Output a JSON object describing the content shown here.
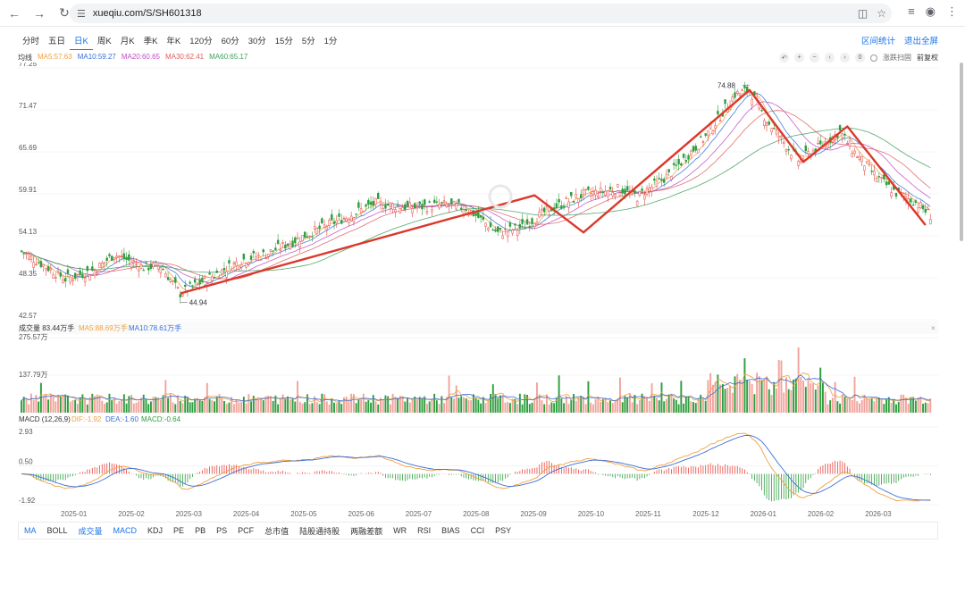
{
  "browser": {
    "url": "xueqiu.com/S/SH601318",
    "back_icon": "back-arrow-icon",
    "forward_icon": "forward-arrow-icon",
    "reload_icon": "reload-icon"
  },
  "period_tabs": [
    "分时",
    "五日",
    "日K",
    "周K",
    "月K",
    "季K",
    "年K",
    "120分",
    "60分",
    "30分",
    "15分",
    "5分",
    "1分"
  ],
  "active_period": "日K",
  "top_links": [
    "区间统计",
    "退出全屏"
  ],
  "ma_legend": {
    "label": "均线",
    "items": [
      {
        "text": "MA5:57.63",
        "color": "#f0a040"
      },
      {
        "text": "MA10:59.27",
        "color": "#3a6fd8"
      },
      {
        "text": "MA20:60.65",
        "color": "#c050c0"
      },
      {
        "text": "MA30:62.41",
        "color": "#e06060"
      },
      {
        "text": "MA60:65.17",
        "color": "#40a060"
      }
    ]
  },
  "chart_tools": {
    "zero": "0",
    "opt1": "涨跌扫固",
    "opt2": "前复权"
  },
  "colors": {
    "up": "#e8453c",
    "down": "#2e9e3e",
    "trend": "#d93a2b",
    "grid": "#eeeeee"
  },
  "chart_data": [
    {
      "type": "candlestick",
      "y_ticks": [
        "77.25",
        "71.47",
        "65.69",
        "59.91",
        "54.13",
        "48.35",
        "42.57"
      ],
      "ylim": [
        42.57,
        77.25
      ],
      "x_ticks": [
        "2025-01",
        "2025-02",
        "2025-03",
        "2025-04",
        "2025-05",
        "2025-06",
        "2025-07",
        "2025-08",
        "2025-09",
        "2025-10",
        "2025-11",
        "2025-12",
        "2026-01",
        "2026-02",
        "2026-03"
      ],
      "high_label": "74.88",
      "low_label": "44.94",
      "close_anchors": [
        [
          0,
          52.0
        ],
        [
          18,
          48.2
        ],
        [
          30,
          49.4
        ],
        [
          38,
          51.6
        ],
        [
          50,
          49.8
        ],
        [
          57,
          50.0
        ],
        [
          65,
          46.2
        ],
        [
          75,
          48.0
        ],
        [
          90,
          50.8
        ],
        [
          100,
          51.6
        ],
        [
          115,
          54.0
        ],
        [
          130,
          56.3
        ],
        [
          145,
          58.6
        ],
        [
          160,
          58.0
        ],
        [
          172,
          58.4
        ],
        [
          182,
          58.0
        ],
        [
          195,
          54.5
        ],
        [
          205,
          55.3
        ],
        [
          215,
          57.6
        ],
        [
          230,
          59.8
        ],
        [
          245,
          60.6
        ],
        [
          252,
          59.5
        ],
        [
          265,
          62.5
        ],
        [
          280,
          67.8
        ],
        [
          292,
          73.6
        ],
        [
          298,
          74.2
        ],
        [
          305,
          70.0
        ],
        [
          318,
          64.5
        ],
        [
          325,
          66.0
        ],
        [
          335,
          68.5
        ],
        [
          340,
          66.0
        ],
        [
          350,
          62.2
        ],
        [
          358,
          60.0
        ],
        [
          365,
          59.0
        ],
        [
          372,
          57.0
        ]
      ],
      "trend_line": [
        [
          65,
          46.2
        ],
        [
          210,
          59.7
        ],
        [
          230,
          54.6
        ],
        [
          298,
          74.2
        ],
        [
          320,
          64.3
        ],
        [
          338,
          69.2
        ],
        [
          370,
          55.6
        ]
      ]
    },
    {
      "type": "bar",
      "title": "成交量 83.44万手",
      "legend": [
        {
          "text": "MA5:88.69万手",
          "color": "#f0a040"
        },
        {
          "text": "MA10:78.61万手",
          "color": "#3a6fd8"
        }
      ],
      "y_ticks": [
        "275.57万",
        "137.79万"
      ],
      "ylim": [
        0,
        275.57
      ]
    },
    {
      "type": "bar",
      "title": "MACD (12,26,9)",
      "legend": [
        {
          "text": "DIF:-1.92",
          "color": "#f0a040"
        },
        {
          "text": "DEA:-1.60",
          "color": "#3a6fd8"
        },
        {
          "text": "MACD:-0.64",
          "color": "#2e9e3e"
        }
      ],
      "y_ticks": [
        "2.93",
        "0.50",
        "-1.92"
      ],
      "ylim": [
        -1.92,
        2.93
      ]
    }
  ],
  "indicator_tabs": [
    "MA",
    "BOLL",
    "成交量",
    "MACD",
    "KDJ",
    "PE",
    "PB",
    "PS",
    "PCF",
    "总市值",
    "陆股通持股",
    "两融差额",
    "WR",
    "RSI",
    "BIAS",
    "CCI",
    "PSY"
  ],
  "active_indicators": [
    "MA",
    "成交量",
    "MACD"
  ]
}
